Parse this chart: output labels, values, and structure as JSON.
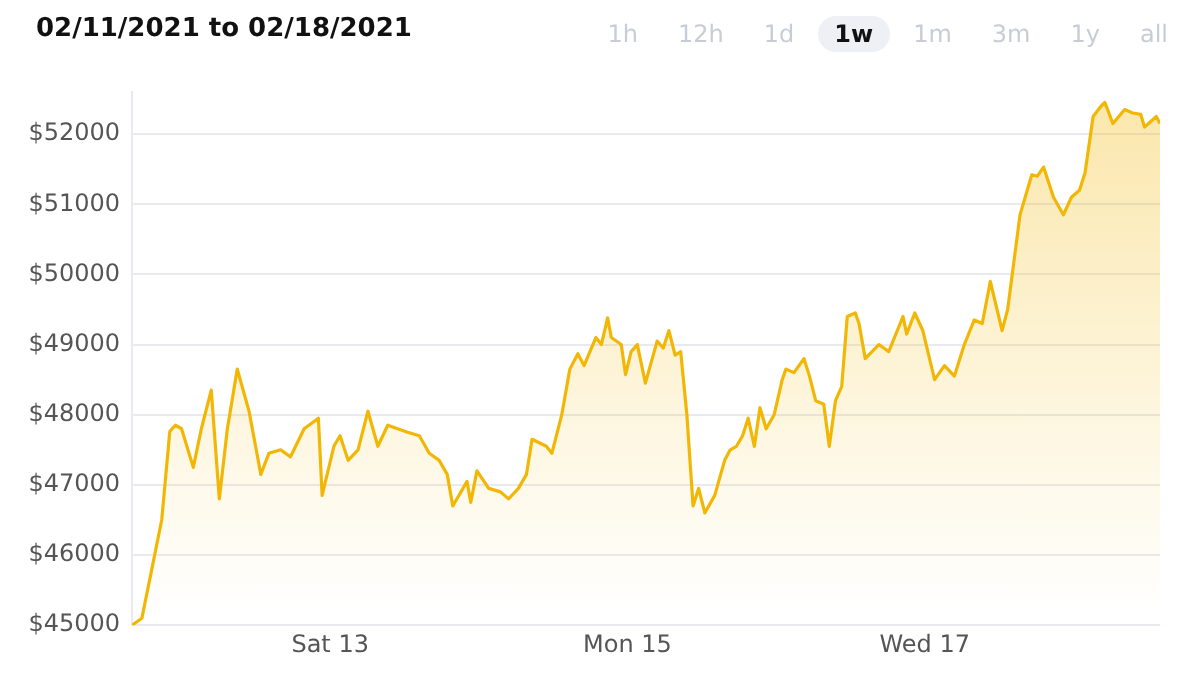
{
  "chart_data": {
    "type": "area",
    "title": "02/11/2021 to 02/18/2021",
    "annotations": [
      "1h",
      "12h",
      "1d",
      "1w",
      "1m",
      "3m",
      "1y",
      "all"
    ],
    "x": [
      "2021-02-11T16:00",
      "2021-02-11T17:36",
      "2021-02-11T19:12",
      "2021-02-11T20:48",
      "2021-02-11T22:06",
      "2021-02-11T23:00",
      "2021-02-12T00:00",
      "2021-02-12T01:54",
      "2021-02-12T03:12",
      "2021-02-12T04:48",
      "2021-02-12T06:06",
      "2021-02-12T07:24",
      "2021-02-12T09:00",
      "2021-02-12T10:54",
      "2021-02-12T12:48",
      "2021-02-12T14:06",
      "2021-02-12T16:00",
      "2021-02-12T17:36",
      "2021-02-12T19:48",
      "2021-02-12T22:06",
      "2021-02-12T22:42",
      "2021-02-13T00:36",
      "2021-02-13T01:36",
      "2021-02-13T02:54",
      "2021-02-13T04:30",
      "2021-02-13T06:06",
      "2021-02-13T07:42",
      "2021-02-13T09:18",
      "2021-02-13T10:54",
      "2021-02-13T12:30",
      "2021-02-13T14:24",
      "2021-02-13T16:00",
      "2021-02-13T17:36",
      "2021-02-13T18:54",
      "2021-02-13T19:48",
      "2021-02-13T22:06",
      "2021-02-13T22:42",
      "2021-02-13T23:42",
      "2021-02-14T01:36",
      "2021-02-14T03:30",
      "2021-02-14T04:48",
      "2021-02-14T06:24",
      "2021-02-14T07:42",
      "2021-02-14T08:36",
      "2021-02-14T10:54",
      "2021-02-14T11:48",
      "2021-02-14T13:24",
      "2021-02-14T14:42",
      "2021-02-14T16:00",
      "2021-02-14T17:00",
      "2021-02-14T18:54",
      "2021-02-14T19:48",
      "2021-02-14T20:48",
      "2021-02-14T21:24",
      "2021-02-14T23:00",
      "2021-02-14T23:42",
      "2021-02-15T00:36",
      "2021-02-15T01:36",
      "2021-02-15T02:54",
      "2021-02-15T04:48",
      "2021-02-15T05:48",
      "2021-02-15T06:42",
      "2021-02-15T07:42",
      "2021-02-15T08:36",
      "2021-02-15T09:36",
      "2021-02-15T10:36",
      "2021-02-15T11:30",
      "2021-02-15T12:30",
      "2021-02-15T14:06",
      "2021-02-15T15:42",
      "2021-02-15T16:36",
      "2021-02-15T17:36",
      "2021-02-15T18:36",
      "2021-02-15T19:30",
      "2021-02-15T20:30",
      "2021-02-15T21:24",
      "2021-02-15T22:24",
      "2021-02-15T23:42",
      "2021-02-16T01:00",
      "2021-02-16T01:36",
      "2021-02-16T02:54",
      "2021-02-16T04:30",
      "2021-02-16T05:24",
      "2021-02-16T06:24",
      "2021-02-16T07:42",
      "2021-02-16T08:36",
      "2021-02-16T09:36",
      "2021-02-16T10:36",
      "2021-02-16T11:30",
      "2021-02-16T12:48",
      "2021-02-16T13:24",
      "2021-02-16T14:24",
      "2021-02-16T16:36",
      "2021-02-16T18:12",
      "2021-02-16T20:30",
      "2021-02-16T21:06",
      "2021-02-16T22:24",
      "2021-02-16T23:42",
      "2021-02-17T01:36",
      "2021-02-17T03:12",
      "2021-02-17T04:48",
      "2021-02-17T06:24",
      "2021-02-17T08:00",
      "2021-02-17T09:18",
      "2021-02-17T10:36",
      "2021-02-17T12:30",
      "2021-02-17T13:24",
      "2021-02-17T15:24",
      "2021-02-17T17:18",
      "2021-02-17T18:12",
      "2021-02-17T19:12",
      "2021-02-17T20:48",
      "2021-02-17T22:24",
      "2021-02-17T23:42",
      "2021-02-18T01:00",
      "2021-02-18T01:54",
      "2021-02-18T03:12",
      "2021-02-18T04:30",
      "2021-02-18T05:06",
      "2021-02-18T06:24",
      "2021-02-18T08:18",
      "2021-02-18T09:36",
      "2021-02-18T10:54",
      "2021-02-18T11:30",
      "2021-02-18T13:24",
      "2021-02-18T14:00"
    ],
    "series": [
      {
        "color": "#f2b705",
        "values": [
          45000,
          45100,
          45800,
          46500,
          47760,
          47850,
          47800,
          47250,
          47800,
          48350,
          46800,
          47800,
          48650,
          48050,
          47150,
          47450,
          47500,
          47400,
          47800,
          47950,
          46850,
          47550,
          47700,
          47350,
          47500,
          48050,
          47550,
          47850,
          47800,
          47750,
          47700,
          47450,
          47350,
          47150,
          46700,
          47050,
          46750,
          47200,
          46950,
          46900,
          46800,
          46950,
          47150,
          47650,
          47550,
          47450,
          48000,
          48650,
          48870,
          48700,
          49100,
          49000,
          49380,
          49100,
          49000,
          48570,
          48900,
          49000,
          48450,
          49050,
          48950,
          49200,
          48850,
          48900,
          48000,
          46700,
          46950,
          46600,
          46850,
          47350,
          47500,
          47550,
          47700,
          47950,
          47550,
          48100,
          47800,
          48000,
          48500,
          48650,
          48600,
          48800,
          48550,
          48200,
          48150,
          47550,
          48200,
          48400,
          49400,
          49450,
          49300,
          48800,
          49000,
          48900,
          49400,
          49150,
          49450,
          49200,
          48500,
          48700,
          48550,
          49000,
          49350,
          49300,
          49900,
          49200,
          49500,
          50850,
          51420,
          51400,
          51530,
          51100,
          50850,
          51100,
          51200,
          51450,
          52250,
          52400,
          52450,
          52150,
          52350,
          52300,
          52280,
          52100,
          52250,
          52150
        ]
      }
    ],
    "xlim": [
      "2021-02-11T16:00",
      "2021-02-18T14:00"
    ],
    "xticks": [
      {
        "value": "2021-02-13",
        "label": "Sat 13"
      },
      {
        "value": "2021-02-15",
        "label": "Mon 15"
      },
      {
        "value": "2021-02-17",
        "label": "Wed 17"
      }
    ],
    "ylim": [
      45000,
      52600
    ],
    "yticks": [
      {
        "value": 45000,
        "label": "$45000"
      },
      {
        "value": 46000,
        "label": "$46000"
      },
      {
        "value": 47000,
        "label": "$47000"
      },
      {
        "value": 48000,
        "label": "$48000"
      },
      {
        "value": 49000,
        "label": "$49000"
      },
      {
        "value": 50000,
        "label": "$50000"
      },
      {
        "value": 51000,
        "label": "$51000"
      },
      {
        "value": 52000,
        "label": "$52000"
      }
    ],
    "grid": "y",
    "legend": false,
    "marker": "none",
    "line_style": "solid"
  }
}
